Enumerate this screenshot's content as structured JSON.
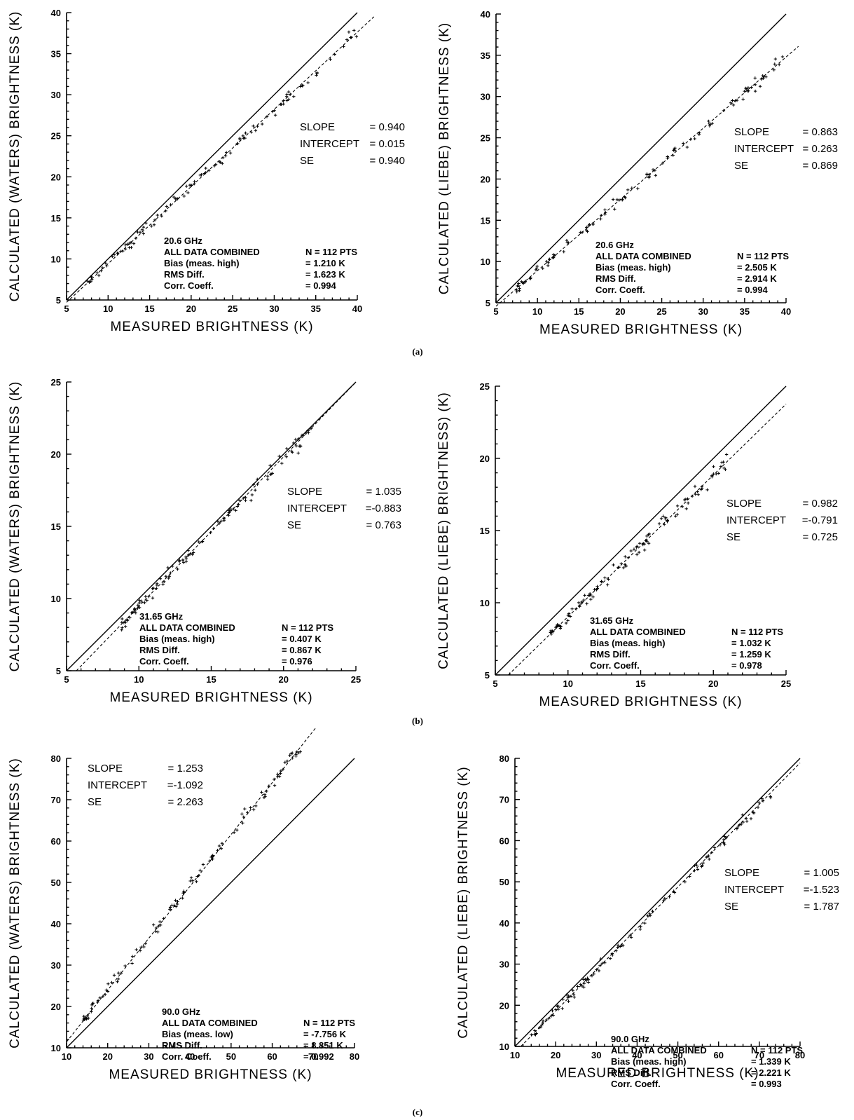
{
  "panel_labels": [
    "(a)",
    "(b)",
    "(c)"
  ],
  "chart_data": [
    {
      "type": "scatter",
      "xlabel": "MEASURED BRIGHTNESS (K)",
      "ylabel": "CALCULATED (WATERS) BRIGHTNESS (K)",
      "xlim": [
        5,
        40
      ],
      "ylim": [
        5,
        40
      ],
      "xticks": [
        "5",
        "10",
        "15",
        "20",
        "25",
        "30",
        "35",
        "40"
      ],
      "yticks": [
        "5",
        "10",
        "15",
        "20",
        "25",
        "30",
        "35",
        "40"
      ],
      "stats": [
        {
          "label": "SLOPE",
          "value": "= 0.940"
        },
        {
          "label": "INTERCEPT",
          "value": "= 0.015"
        },
        {
          "label": "SE",
          "value": "= 0.940"
        }
      ],
      "info": [
        {
          "label": "20.6 GHz",
          "value": ""
        },
        {
          "label": "ALL DATA COMBINED",
          "value": "N = 112 PTS"
        },
        {
          "label": "Bias (meas. high)",
          "value": "= 1.210 K"
        },
        {
          "label": "RMS Diff.",
          "value": "= 1.623 K"
        },
        {
          "label": "Corr. Coeff.",
          "value": "= 0.994"
        }
      ],
      "slope": 0.94,
      "intercept": 0.015,
      "scatter_sd": 0.6,
      "x_range": [
        7.5,
        40
      ],
      "reference_line": [
        [
          5,
          5
        ],
        [
          40,
          40
        ]
      ],
      "regression_line": [
        [
          5,
          4.715
        ],
        [
          42,
          39.495
        ]
      ]
    },
    {
      "type": "scatter",
      "xlabel": "MEASURED BRIGHTNESS (K)",
      "ylabel": "CALCULATED (LIEBE) BRIGHTNESS (K)",
      "xlim": [
        5,
        40
      ],
      "ylim": [
        5,
        40
      ],
      "xticks": [
        "5",
        "10",
        "15",
        "20",
        "25",
        "30",
        "35",
        "40"
      ],
      "yticks": [
        "5",
        "10",
        "15",
        "20",
        "25",
        "30",
        "35",
        "40"
      ],
      "stats": [
        {
          "label": "SLOPE",
          "value": "= 0.863"
        },
        {
          "label": "INTERCEPT",
          "value": "= 0.263"
        },
        {
          "label": "SE",
          "value": "= 0.869"
        }
      ],
      "info": [
        {
          "label": "20.6 GHz",
          "value": ""
        },
        {
          "label": "ALL DATA COMBINED",
          "value": "N = 112 PTS"
        },
        {
          "label": "Bias (meas. high)",
          "value": "= 2.505 K"
        },
        {
          "label": "RMS Diff.",
          "value": "= 2.914 K"
        },
        {
          "label": "Corr. Coeff.",
          "value": "= 0.994"
        }
      ],
      "slope": 0.863,
      "intercept": 0.263,
      "scatter_sd": 0.6,
      "x_range": [
        7.5,
        40
      ],
      "reference_line": [
        [
          5,
          5
        ],
        [
          40,
          40
        ]
      ],
      "regression_line": [
        [
          5,
          4.578
        ],
        [
          41.5,
          36.08
        ]
      ]
    },
    {
      "type": "scatter",
      "xlabel": "MEASURED BRIGHTNESS (K)",
      "ylabel": "CALCULATED (WATERS) BRIGHTNESS (K)",
      "xlim": [
        5,
        25
      ],
      "ylim": [
        5,
        25
      ],
      "xticks": [
        "5",
        "10",
        "15",
        "20",
        "25"
      ],
      "yticks": [
        "5",
        "10",
        "15",
        "20",
        "25"
      ],
      "stats": [
        {
          "label": "SLOPE",
          "value": "= 1.035"
        },
        {
          "label": "INTERCEPT",
          "value": "=-0.883"
        },
        {
          "label": "SE",
          "value": "= 0.763"
        }
      ],
      "info": [
        {
          "label": "31.65 GHz",
          "value": ""
        },
        {
          "label": "ALL DATA COMBINED",
          "value": "N = 112 PTS"
        },
        {
          "label": "Bias (meas. high)",
          "value": "= 0.407 K"
        },
        {
          "label": "RMS Diff.",
          "value": "= 0.867 K"
        },
        {
          "label": "Corr. Coeff.",
          "value": "= 0.976"
        }
      ],
      "slope": 1.035,
      "intercept": -0.883,
      "scatter_sd": 0.45,
      "x_range": [
        8.8,
        22
      ],
      "reference_line": [
        [
          5,
          5
        ],
        [
          25,
          25
        ]
      ],
      "regression_line": [
        [
          5.682,
          5
        ],
        [
          25,
          24.99
        ]
      ]
    },
    {
      "type": "scatter",
      "xlabel": "MEASURED BRIGHTNESS (K)",
      "ylabel": "CALCULATED (LIEBE) BRIGHTNESS) (K)",
      "xlim": [
        5,
        25
      ],
      "ylim": [
        5,
        25
      ],
      "xticks": [
        "5",
        "10",
        "15",
        "20",
        "25"
      ],
      "yticks": [
        "5",
        "10",
        "15",
        "20",
        "25"
      ],
      "stats": [
        {
          "label": "SLOPE",
          "value": "= 0.982"
        },
        {
          "label": "INTERCEPT",
          "value": "=-0.791"
        },
        {
          "label": "SE",
          "value": "= 0.725"
        }
      ],
      "info": [
        {
          "label": "31.65 GHz",
          "value": ""
        },
        {
          "label": "ALL DATA COMBINED",
          "value": "N = 112 PTS"
        },
        {
          "label": "Bias (meas. high)",
          "value": "= 1.032 K"
        },
        {
          "label": "RMS Diff.",
          "value": "= 1.259 K"
        },
        {
          "label": "Corr. Coeff.",
          "value": "= 0.978"
        }
      ],
      "slope": 0.982,
      "intercept": -0.791,
      "scatter_sd": 0.45,
      "x_range": [
        8.8,
        21
      ],
      "reference_line": [
        [
          5,
          5
        ],
        [
          25,
          25
        ]
      ],
      "regression_line": [
        [
          5.897,
          5
        ],
        [
          25,
          23.76
        ]
      ]
    },
    {
      "type": "scatter",
      "xlabel": "MEASURED BRIGHTNESS (K)",
      "ylabel": "CALCULATED (WATERS) BRIGHTNESS (K)",
      "xlim": [
        10,
        80
      ],
      "ylim": [
        10,
        80
      ],
      "xticks": [
        "10",
        "20",
        "30",
        "40",
        "50",
        "60",
        "70",
        "80"
      ],
      "yticks": [
        "10",
        "20",
        "30",
        "40",
        "50",
        "60",
        "70",
        "80"
      ],
      "stats": [
        {
          "label": "SLOPE",
          "value": "= 1.253"
        },
        {
          "label": "INTERCEPT",
          "value": "=-1.092"
        },
        {
          "label": "SE",
          "value": "= 2.263"
        }
      ],
      "info": [
        {
          "label": "90.0 GHz",
          "value": ""
        },
        {
          "label": "ALL DATA COMBINED",
          "value": "N = 112 PTS"
        },
        {
          "label": "Bias (meas. low)",
          "value": "= -7.756 K"
        },
        {
          "label": "RMS Diff.",
          "value": "= 8.851 K"
        },
        {
          "label": "Corr. Coeff.",
          "value": "= 0.992"
        }
      ],
      "slope": 1.253,
      "intercept": -1.092,
      "scatter_sd": 1.4,
      "x_range": [
        14,
        68
      ],
      "reference_line": [
        [
          10,
          10
        ],
        [
          80,
          80
        ]
      ],
      "regression_line": [
        [
          10,
          11.44
        ],
        [
          70.6,
          87.4
        ]
      ]
    },
    {
      "type": "scatter",
      "xlabel": "MEASURED BRIGHTNESS (K)",
      "ylabel": "CALCULATED (LIEBE) BRIGHTNESS (K)",
      "xlim": [
        10,
        80
      ],
      "ylim": [
        10,
        80
      ],
      "xticks": [
        "10",
        "20",
        "30",
        "40",
        "50",
        "60",
        "70",
        "80"
      ],
      "yticks": [
        "10",
        "20",
        "30",
        "40",
        "50",
        "60",
        "70",
        "80"
      ],
      "stats": [
        {
          "label": "SLOPE",
          "value": "= 1.005"
        },
        {
          "label": "INTERCEPT",
          "value": "=-1.523"
        },
        {
          "label": "SE",
          "value": "= 1.787"
        }
      ],
      "info": [
        {
          "label": "90.0 GHz",
          "value": ""
        },
        {
          "label": "ALL DATA COMBINED",
          "value": "N = 112 PTS"
        },
        {
          "label": "Bias (meas. high)",
          "value": "= 1.339 K"
        },
        {
          "label": "RMS Diff.",
          "value": "= 2.221 K"
        },
        {
          "label": "Corr. Coeff.",
          "value": "= 0.993"
        }
      ],
      "slope": 1.005,
      "intercept": -1.523,
      "scatter_sd": 1.2,
      "x_range": [
        14,
        73
      ],
      "reference_line": [
        [
          10,
          10
        ],
        [
          80,
          80
        ]
      ],
      "regression_line": [
        [
          11.46,
          10
        ],
        [
          80,
          78.88
        ]
      ]
    }
  ]
}
